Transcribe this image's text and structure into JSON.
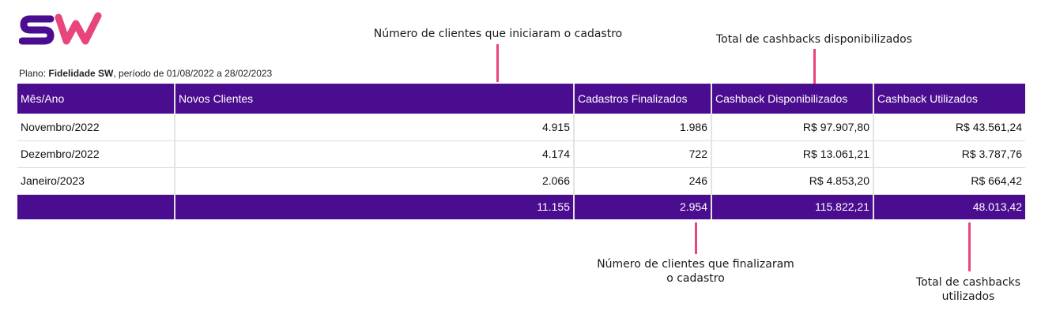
{
  "logo": {
    "text": "SW",
    "colors": [
      "#4b0d8f",
      "#e8457a"
    ]
  },
  "plan": {
    "prefix": "Plano: ",
    "name": "Fidelidade SW",
    "suffix": ", período de 01/08/2022 a 28/02/2023"
  },
  "table": {
    "headers": [
      "Mês/Ano",
      "Novos Clientes",
      "Cadastros Finalizados",
      "Cashback Disponibilizados",
      "Cashback Utilizados"
    ],
    "rows": [
      [
        "Novembro/2022",
        "4.915",
        "1.986",
        "R$ 97.907,80",
        "R$ 43.561,24"
      ],
      [
        "Dezembro/2022",
        "4.174",
        "722",
        "R$ 13.061,21",
        "R$ 3.787,76"
      ],
      [
        "Janeiro/2023",
        "2.066",
        "246",
        "R$ 4.853,20",
        "R$ 664,42"
      ]
    ],
    "totals": [
      "",
      "11.155",
      "2.954",
      "115.822,21",
      "48.013,42"
    ]
  },
  "annotations": {
    "novos": "Número de clientes que iniciaram o cadastro",
    "disponibilizados": "Total de cashbacks disponibilizados",
    "finalizados_line1": "Número de clientes que finalizaram",
    "finalizados_line2": "o cadastro",
    "utilizados_line1": "Total de cashbacks",
    "utilizados_line2": "utilizados"
  },
  "colors": {
    "header_bg": "#4b0d8f",
    "annotation_line": "#e8457a"
  }
}
